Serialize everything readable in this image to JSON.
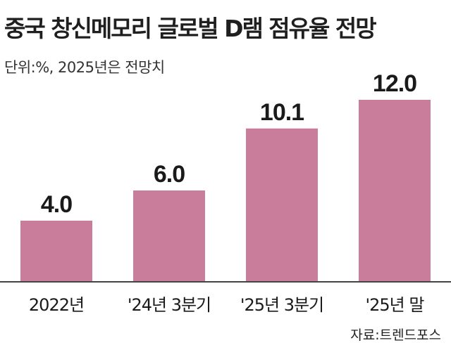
{
  "title": "중국 창신메모리 글로벌 D램 점유율 전망",
  "unit_note": "단위:%, 2025년은 전망치",
  "source": "자료:트렌드포스",
  "colors": {
    "bar": "#c97d9b",
    "axis": "#444444"
  },
  "chart_data": {
    "type": "bar",
    "title": "중국 창신메모리 글로벌 D램 점유율 전망",
    "categories": [
      "2022년",
      "'24년 3분기",
      "'25년 3분기",
      "'25년 말"
    ],
    "values": [
      4.0,
      6.0,
      10.1,
      12.0
    ],
    "value_labels": [
      "4.0",
      "6.0",
      "10.1",
      "12.0"
    ],
    "xlabel": "",
    "ylabel": "",
    "ylim": [
      0,
      12.0
    ],
    "grid": false,
    "legend": "none"
  }
}
